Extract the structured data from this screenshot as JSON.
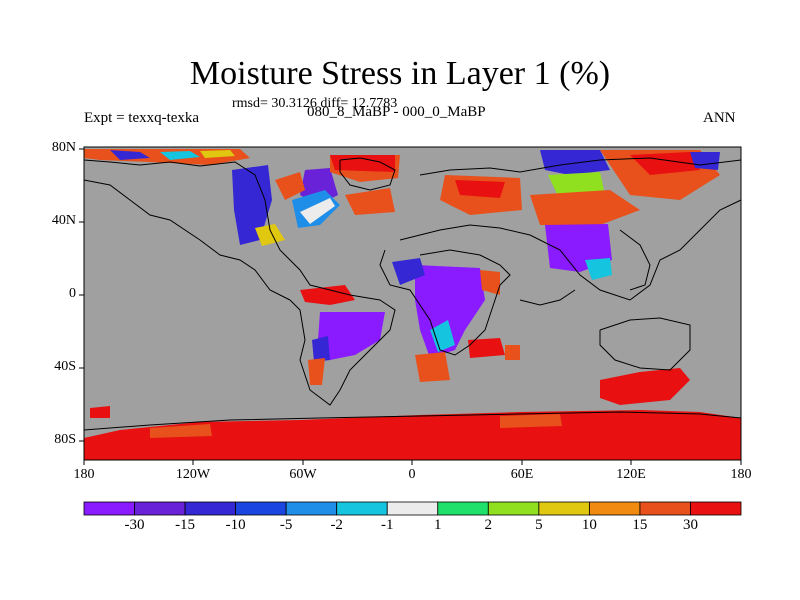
{
  "header": {
    "title": "Moisture Stress in Layer 1 (%)",
    "stats": "rmsd= 30.3126 diff= 12.7783",
    "expt": "Expt = texxq-texka",
    "period": "080_8_MaBP - 000_0_MaBP",
    "season": "ANN"
  },
  "axes": {
    "lat_ticks": [
      "80N",
      "40N",
      "0",
      "40S",
      "80S"
    ],
    "lon_ticks": [
      "180",
      "120W",
      "60W",
      "0",
      "60E",
      "120E",
      "180"
    ]
  },
  "colors": {
    "missing": "#a0a0a0",
    "coast": "#000000"
  },
  "colorbar": {
    "labels": [
      "-30",
      "-15",
      "-10",
      "-5",
      "-2",
      "-1",
      "1",
      "2",
      "5",
      "10",
      "15",
      "30"
    ],
    "colors": [
      "#8a1aff",
      "#6a22d8",
      "#3528d4",
      "#1b45e0",
      "#1f8ee8",
      "#15c4de",
      "#ececec",
      "#1ee06a",
      "#90e020",
      "#e0c810",
      "#f08a10",
      "#e8501c",
      "#e81010"
    ]
  }
}
